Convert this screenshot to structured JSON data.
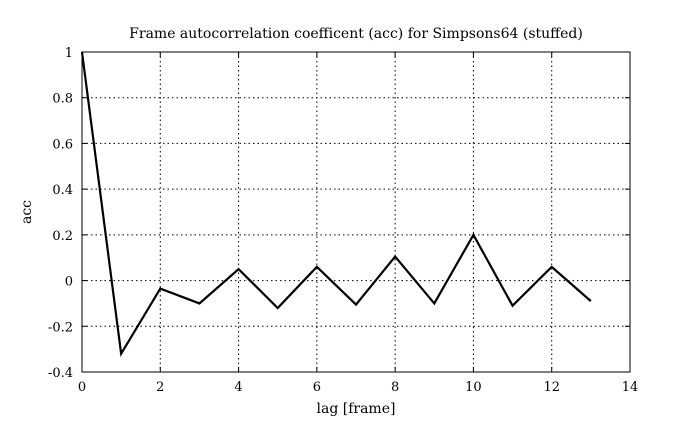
{
  "chart_data": {
    "type": "line",
    "title": "Frame autocorrelation coefficent (acc) for Simpsons64 (stuffed)",
    "xlabel": "lag [frame]",
    "ylabel": "acc",
    "xlim": [
      0,
      14
    ],
    "ylim": [
      -0.4,
      1
    ],
    "xticks": [
      0,
      2,
      4,
      6,
      8,
      10,
      12,
      14
    ],
    "yticks": [
      -0.4,
      -0.2,
      0,
      0.2,
      0.4,
      0.6,
      0.8,
      1
    ],
    "xtick_labels": [
      "0",
      "2",
      "4",
      "6",
      "8",
      "10",
      "12",
      "14"
    ],
    "ytick_labels": [
      "-0.4",
      "-0.2",
      "0",
      "0.2",
      "0.4",
      "0.6",
      "0.8",
      "1"
    ],
    "grid": true,
    "series": [
      {
        "x": [
          0,
          1,
          2,
          3,
          4,
          5,
          6,
          7,
          8,
          9,
          10,
          11,
          12,
          13
        ],
        "y": [
          1.0,
          -0.32,
          -0.035,
          -0.1,
          0.05,
          -0.12,
          0.06,
          -0.105,
          0.105,
          -0.1,
          0.2,
          -0.11,
          0.06,
          -0.09
        ],
        "color": "#000000"
      }
    ]
  }
}
